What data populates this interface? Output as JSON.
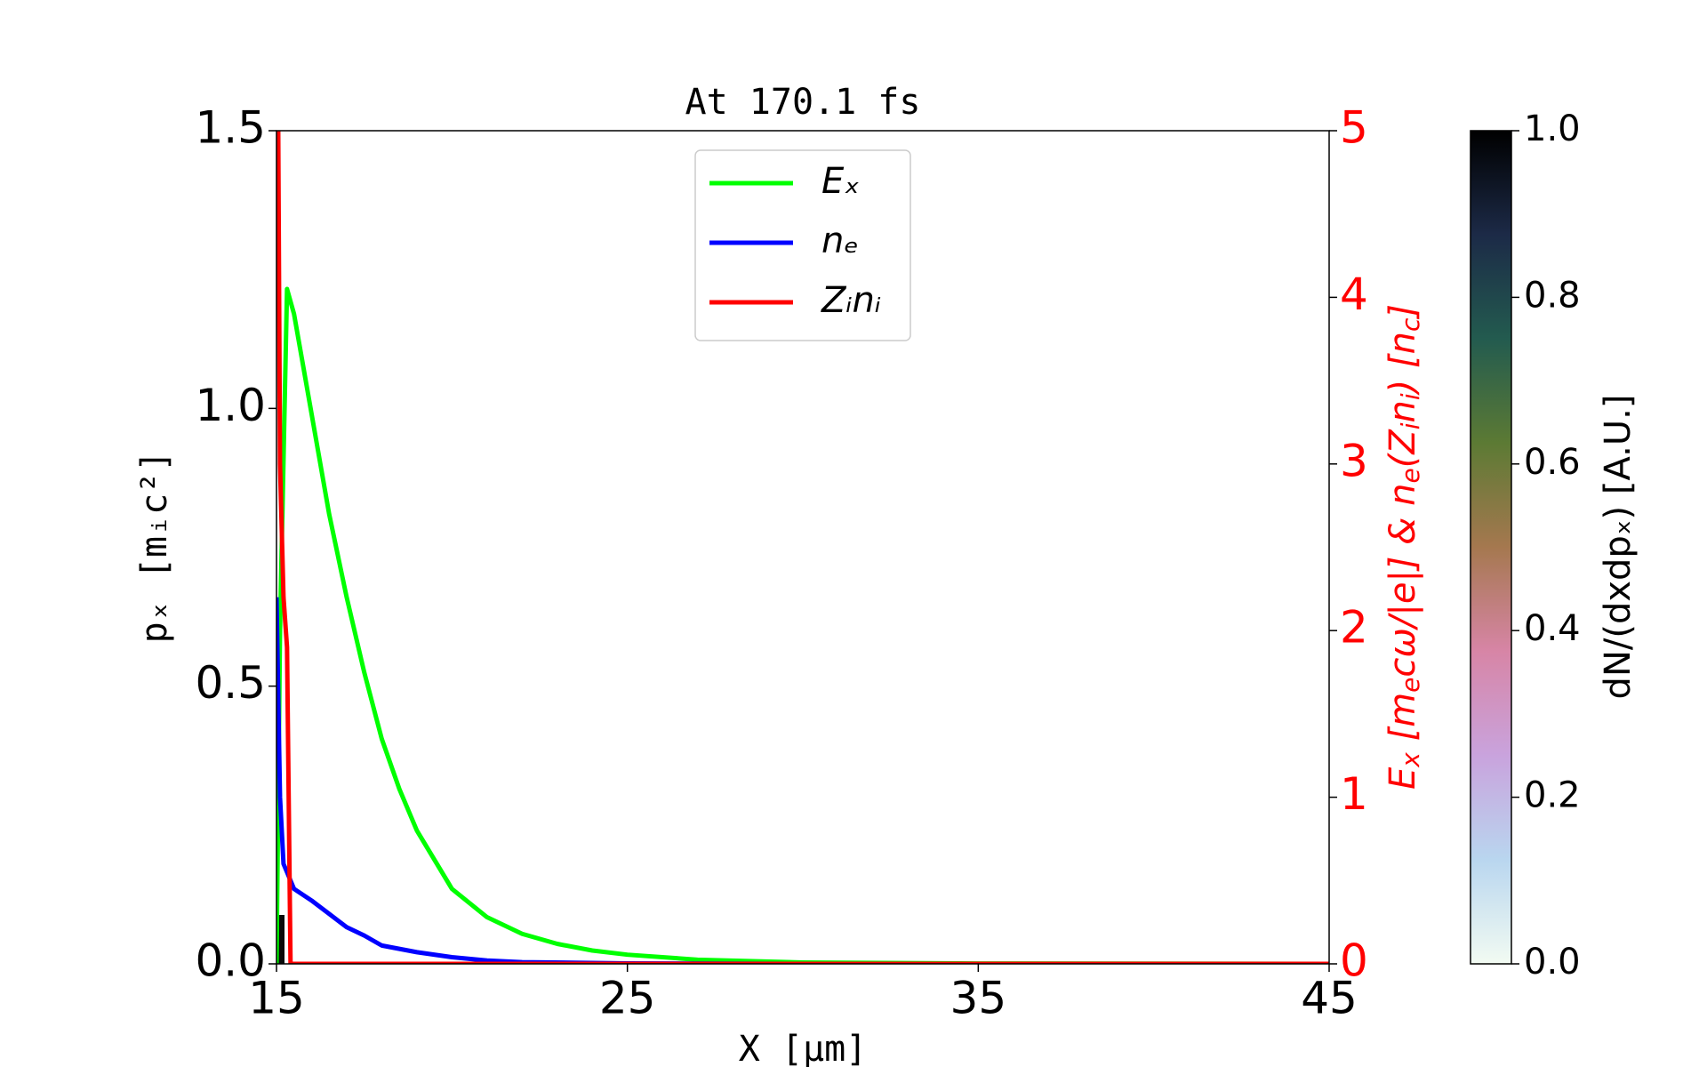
{
  "chart_data": {
    "type": "line",
    "title": "At 170.1 fs",
    "xlabel": "X [μm]",
    "ylabel": "pₓ  [mᵢc²]",
    "y2label": [
      "E",
      "x",
      "  [m",
      "e",
      "cω/|e|]  &  n",
      "e",
      "(Z",
      "i",
      "n",
      "i",
      ")  [n",
      "c",
      "]"
    ],
    "xlim": [
      15,
      45
    ],
    "xticks": [
      15,
      25,
      35,
      45
    ],
    "ylim": [
      0,
      1.5
    ],
    "yticks": [
      {
        "value": 0,
        "label": "0.0"
      },
      {
        "value": 0.5,
        "label": "0.5"
      },
      {
        "value": 1,
        "label": "1.0"
      },
      {
        "value": 1.5,
        "label": "1.5"
      }
    ],
    "y2lim": [
      0,
      5
    ],
    "y2ticks": [
      0,
      1,
      2,
      3,
      4,
      5
    ],
    "y2color": "#ff0000",
    "legend": "upper center",
    "series": [
      {
        "name": "Eₓ",
        "color": "#00ff00",
        "axis": "y2",
        "x": [
          15,
          15.1,
          15.3,
          15.5,
          16,
          16.5,
          17,
          17.5,
          18,
          18.5,
          19,
          20,
          21,
          22,
          23,
          24,
          25,
          27,
          30,
          35,
          45
        ],
        "values": [
          0,
          2.0,
          4.05,
          3.9,
          3.3,
          2.7,
          2.2,
          1.75,
          1.35,
          1.05,
          0.8,
          0.45,
          0.28,
          0.18,
          0.12,
          0.08,
          0.055,
          0.025,
          0.008,
          0.002,
          0
        ]
      },
      {
        "name": "nₑ",
        "color": "#0000ff",
        "axis": "y2",
        "x": [
          15,
          15.1,
          15.2,
          15.5,
          16,
          16.5,
          17,
          17.5,
          18,
          19,
          20,
          21,
          22,
          25,
          30,
          45
        ],
        "values": [
          2.2,
          1.0,
          0.6,
          0.45,
          0.38,
          0.3,
          0.22,
          0.17,
          0.11,
          0.07,
          0.04,
          0.02,
          0.01,
          0.003,
          0,
          0
        ]
      },
      {
        "name": "Zᵢnᵢ",
        "color": "#ff0000",
        "axis": "y2",
        "x": [
          15.05,
          15.1,
          15.2,
          15.3,
          15.4,
          45
        ],
        "values": [
          5,
          3.0,
          2.2,
          1.9,
          0,
          0
        ]
      }
    ],
    "colorbar": {
      "label": "dN/(dxdpₓ)  [A.U.]",
      "lim": [
        0,
        1
      ],
      "ticks": [
        {
          "value": 0,
          "label": "0.0"
        },
        {
          "value": 0.2,
          "label": "0.2"
        },
        {
          "value": 0.4,
          "label": "0.4"
        },
        {
          "value": 0.6,
          "label": "0.6"
        },
        {
          "value": 0.8,
          "label": "0.8"
        },
        {
          "value": 1,
          "label": "1.0"
        }
      ],
      "colors": [
        "#f2fbf2",
        "#b9d6ef",
        "#c9a3dd",
        "#d785a6",
        "#a5784f",
        "#5c7a34",
        "#235b4f",
        "#1c2a47",
        "#000000"
      ]
    }
  }
}
